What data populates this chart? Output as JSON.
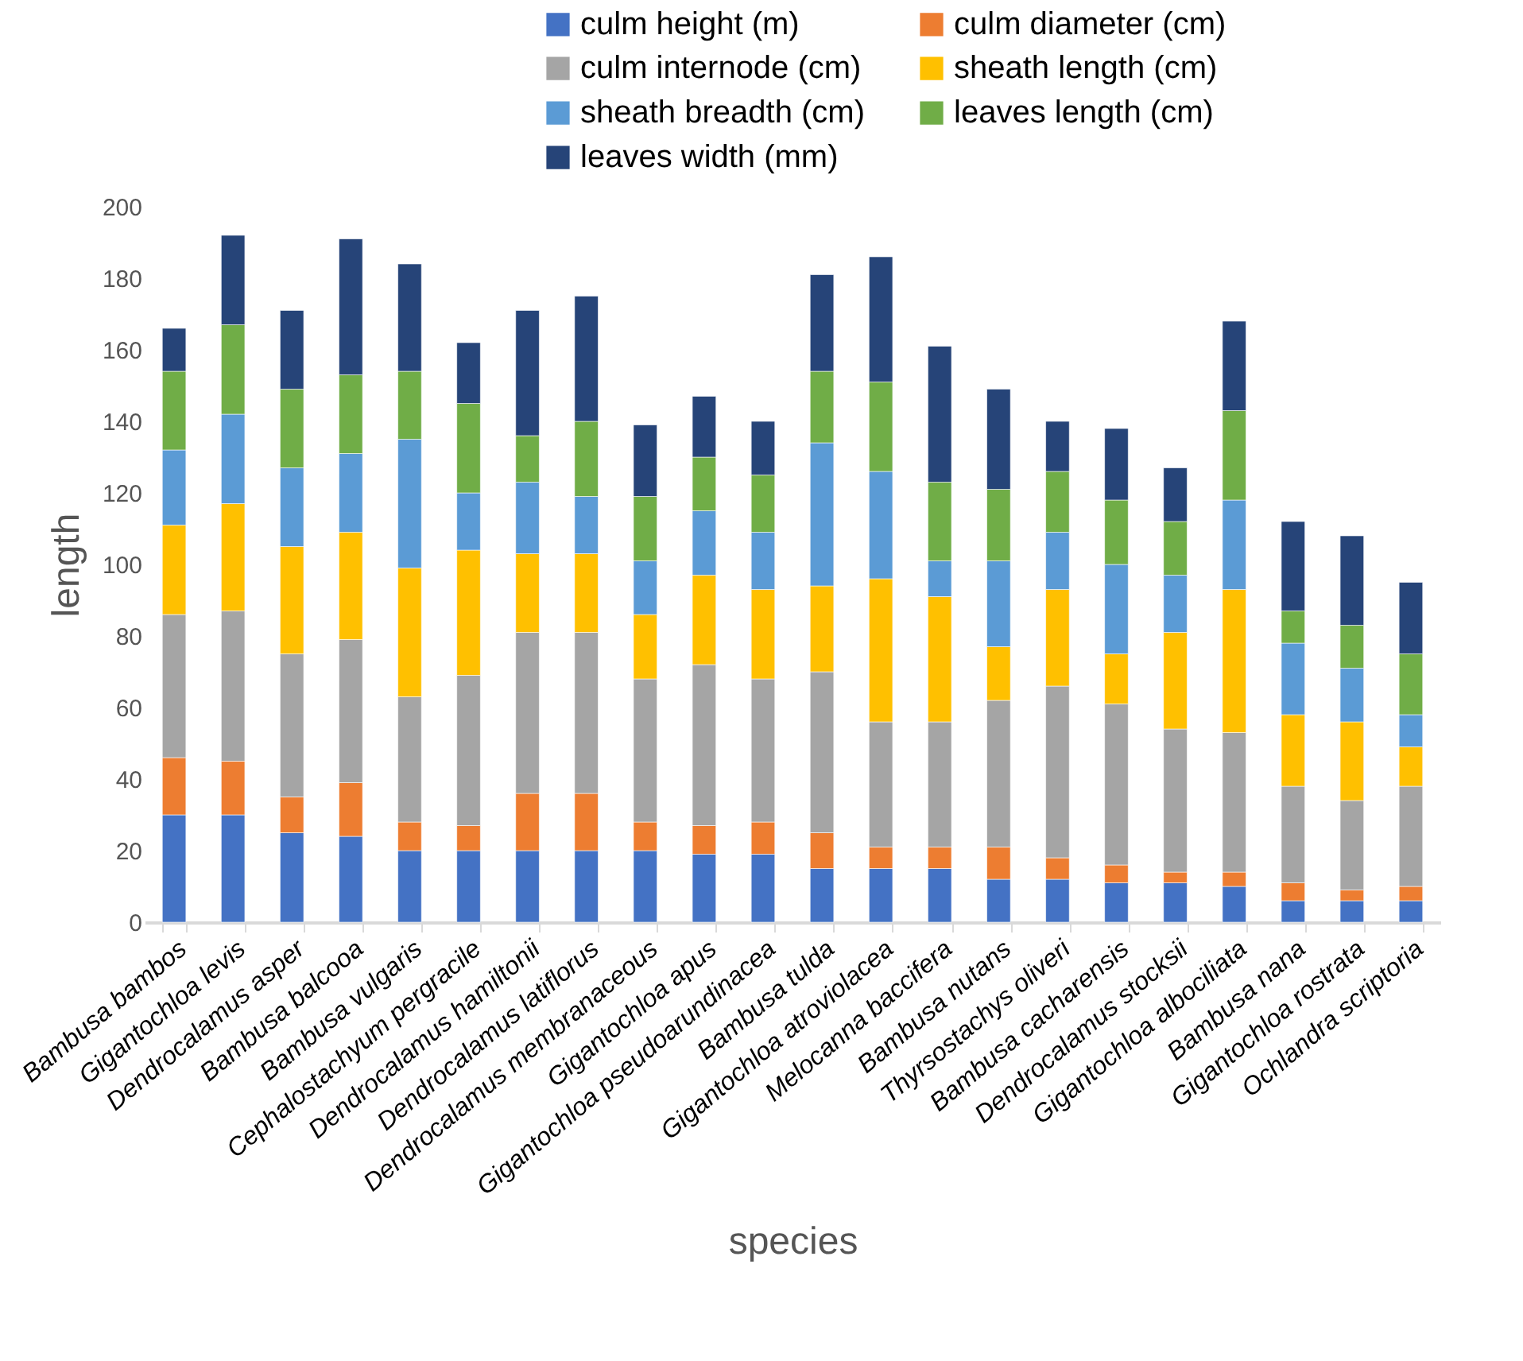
{
  "chart_data": {
    "type": "bar",
    "stacked": true,
    "xlabel": "species",
    "ylabel": "length",
    "legend": "top right",
    "grid": false,
    "ylim": [
      0,
      200
    ],
    "yticks": [
      0,
      20,
      40,
      60,
      80,
      100,
      120,
      140,
      160,
      180,
      200
    ],
    "categories": [
      "Bambusa bambos",
      "Gigantochloa levis",
      "Dendrocalamus asper",
      "Bambusa balcooa",
      "Bambusa vulgaris",
      "Cephalostachyum pergracile",
      "Dendrocalamus hamiltonii",
      "Dendrocalamus latiflorus",
      "Dendrocalamus membranaceous",
      "Gigantochloa apus",
      "Gigantochloa pseudoarundinacea",
      "Bambusa tulda",
      "Gigantochloa atroviolacea",
      "Melocanna baccifera",
      "Bambusa nutans",
      "Thyrsostachys oliveri",
      "Bambusa cacharensis",
      "Dendrocalamus stocksii",
      "Gigantochloa albociliata",
      "Bambusa nana",
      "Gigantochloa rostrata",
      "Ochlandra scriptoria"
    ],
    "series": [
      {
        "name": "culm height (m)",
        "color": "#4472c4",
        "values": [
          30,
          30,
          25,
          24,
          20,
          20,
          20,
          20,
          20,
          19,
          19,
          15,
          15,
          15,
          12,
          12,
          11,
          11,
          10,
          6,
          6,
          6
        ]
      },
      {
        "name": "culm diameter (cm)",
        "color": "#ed7d31",
        "values": [
          16,
          15,
          10,
          15,
          8,
          7,
          16,
          16,
          8,
          8,
          9,
          10,
          6,
          6,
          9,
          6,
          5,
          3,
          4,
          5,
          3,
          4
        ]
      },
      {
        "name": "culm internode (cm)",
        "color": "#a5a5a5",
        "values": [
          40,
          42,
          40,
          40,
          35,
          42,
          45,
          45,
          40,
          45,
          40,
          45,
          35,
          35,
          41,
          48,
          45,
          40,
          39,
          27,
          25,
          28
        ]
      },
      {
        "name": "sheath length (cm)",
        "color": "#ffc000",
        "values": [
          25,
          30,
          30,
          30,
          36,
          35,
          22,
          22,
          18,
          25,
          25,
          24,
          40,
          35,
          15,
          27,
          14,
          27,
          40,
          20,
          22,
          11
        ]
      },
      {
        "name": "sheath breadth (cm)",
        "color": "#5b9bd5",
        "values": [
          21,
          25,
          22,
          22,
          36,
          16,
          20,
          16,
          15,
          18,
          16,
          40,
          30,
          10,
          24,
          16,
          25,
          16,
          25,
          20,
          15,
          9
        ]
      },
      {
        "name": "leaves length (cm)",
        "color": "#70ad47",
        "values": [
          22,
          25,
          22,
          22,
          19,
          25,
          13,
          21,
          18,
          15,
          16,
          20,
          25,
          22,
          20,
          17,
          18,
          15,
          25,
          9,
          12,
          17
        ]
      },
      {
        "name": "leaves width  (mm)",
        "color": "#264478",
        "values": [
          12,
          25,
          22,
          38,
          30,
          17,
          35,
          35,
          20,
          17,
          15,
          27,
          35,
          38,
          28,
          14,
          20,
          15,
          25,
          25,
          25,
          20
        ]
      }
    ]
  }
}
